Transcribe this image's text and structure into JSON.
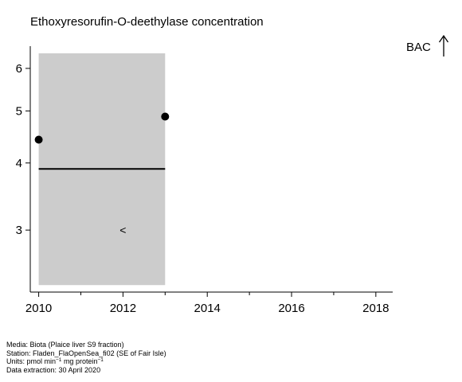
{
  "title": "Ethoxyresorufin-O-deethylase concentration",
  "bac_label": "BAC",
  "footer": {
    "media": "Media: Biota (Plaice liver S9 fraction)",
    "station": "Station: Fladen_FlaOpenSea_fi02 (SE of Fair Isle)",
    "units_prefix": "Units:  pmol min",
    "units_exp1": "−1",
    "units_mid": " mg protein",
    "units_exp2": "−1",
    "extraction": "Data extraction: 30 April 2020"
  },
  "chart_data": {
    "type": "scatter",
    "title": "Ethoxyresorufin-O-deethylase concentration",
    "xlabel": "",
    "ylabel": "",
    "y_scale": "log",
    "xlim": [
      2009.8,
      2018.4
    ],
    "ylim": [
      2.3,
      6.6
    ],
    "x_ticks": [
      2010,
      2012,
      2014,
      2016,
      2018
    ],
    "x_minor_ticks": [
      2011,
      2013,
      2015,
      2017
    ],
    "y_ticks": [
      3,
      4,
      5,
      6
    ],
    "points": [
      {
        "x": 2010,
        "y": 4.42
      },
      {
        "x": 2013,
        "y": 4.88
      }
    ],
    "band": {
      "x": [
        2010,
        2013
      ],
      "y": [
        2.37,
        6.4
      ],
      "color": "#cccccc"
    },
    "trend_line": {
      "x": [
        2010,
        2013
      ],
      "y": [
        3.9,
        3.9
      ]
    },
    "censored_marker": {
      "x": 2012,
      "y": 3.0,
      "symbol": "<"
    },
    "reference_label": "BAC",
    "grid": false
  }
}
